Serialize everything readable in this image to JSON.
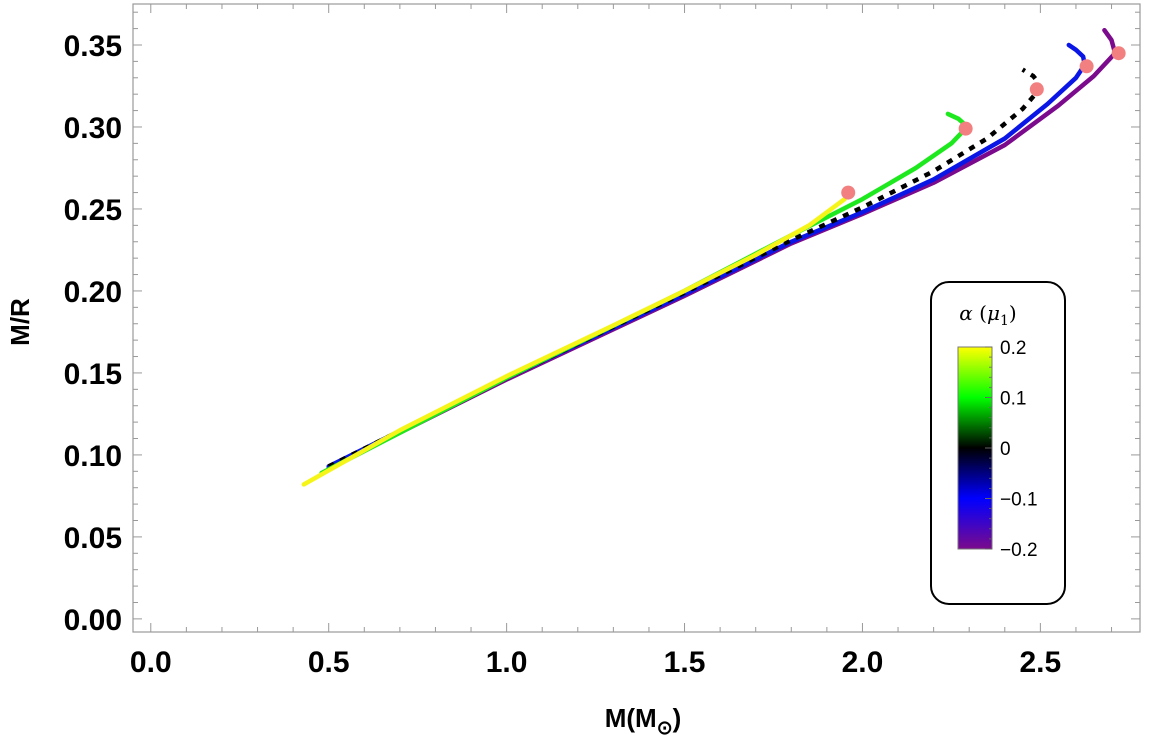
{
  "chart_data": {
    "type": "line",
    "xlabel": "M(M",
    "xlabel_sub": "⊙",
    "xlabel_close": ")",
    "ylabel": "M/R",
    "xlim": [
      -0.05,
      2.78
    ],
    "ylim": [
      -0.008,
      0.375
    ],
    "x_ticks": [
      0.0,
      0.5,
      1.0,
      1.5,
      2.0,
      2.5
    ],
    "x_tick_labels": [
      "0.0",
      "0.5",
      "1.0",
      "1.5",
      "2.0",
      "2.5"
    ],
    "y_ticks": [
      0.0,
      0.05,
      0.1,
      0.15,
      0.2,
      0.25,
      0.3,
      0.35
    ],
    "y_tick_labels": [
      "0.00",
      "0.05",
      "0.10",
      "0.15",
      "0.20",
      "0.25",
      "0.30",
      "0.35"
    ],
    "grid": false,
    "series": [
      {
        "alpha": -0.2,
        "color": "#7b0a8c",
        "dashed": false,
        "points": [
          [
            0.5,
            0.092
          ],
          [
            1.0,
            0.146
          ],
          [
            1.5,
            0.197
          ],
          [
            1.8,
            0.229
          ],
          [
            2.0,
            0.247
          ],
          [
            2.2,
            0.266
          ],
          [
            2.4,
            0.289
          ],
          [
            2.55,
            0.313
          ],
          [
            2.65,
            0.331
          ],
          [
            2.71,
            0.345
          ],
          [
            2.7,
            0.353
          ],
          [
            2.68,
            0.359
          ]
        ],
        "max_point": [
          2.72,
          0.345
        ]
      },
      {
        "alpha": -0.1,
        "color": "#0a16e6",
        "dashed": false,
        "points": [
          [
            0.5,
            0.093
          ],
          [
            1.0,
            0.147
          ],
          [
            1.5,
            0.198
          ],
          [
            1.8,
            0.23
          ],
          [
            2.0,
            0.248
          ],
          [
            2.2,
            0.268
          ],
          [
            2.4,
            0.293
          ],
          [
            2.52,
            0.314
          ],
          [
            2.6,
            0.33
          ],
          [
            2.625,
            0.338
          ],
          [
            2.62,
            0.343
          ],
          [
            2.6,
            0.347
          ],
          [
            2.58,
            0.35
          ]
        ],
        "max_point": [
          2.63,
          0.337
        ]
      },
      {
        "alpha": 0.0,
        "color": "#000000",
        "dashed": true,
        "points": [
          [
            0.5,
            0.093
          ],
          [
            1.0,
            0.147
          ],
          [
            1.5,
            0.199
          ],
          [
            1.8,
            0.231
          ],
          [
            2.0,
            0.251
          ],
          [
            2.2,
            0.273
          ],
          [
            2.35,
            0.293
          ],
          [
            2.45,
            0.311
          ],
          [
            2.49,
            0.321
          ],
          [
            2.495,
            0.327
          ],
          [
            2.48,
            0.331
          ],
          [
            2.45,
            0.335
          ]
        ],
        "max_point": [
          2.49,
          0.323
        ]
      },
      {
        "alpha": 0.1,
        "color": "#1ee81e",
        "dashed": false,
        "points": [
          [
            0.48,
            0.089
          ],
          [
            1.0,
            0.147
          ],
          [
            1.5,
            0.2
          ],
          [
            1.8,
            0.234
          ],
          [
            2.0,
            0.256
          ],
          [
            2.15,
            0.275
          ],
          [
            2.25,
            0.29
          ],
          [
            2.29,
            0.299
          ],
          [
            2.285,
            0.302
          ],
          [
            2.27,
            0.305
          ],
          [
            2.24,
            0.308
          ]
        ],
        "max_point": [
          2.29,
          0.299
        ]
      },
      {
        "alpha": 0.2,
        "color": "#f5f51a",
        "dashed": false,
        "points": [
          [
            0.43,
            0.082
          ],
          [
            0.7,
            0.115
          ],
          [
            1.0,
            0.148
          ],
          [
            1.3,
            0.179
          ],
          [
            1.5,
            0.2
          ],
          [
            1.7,
            0.222
          ],
          [
            1.85,
            0.24
          ],
          [
            1.95,
            0.256
          ]
        ],
        "max_point": [
          1.96,
          0.26
        ]
      }
    ],
    "max_marker_color": "#f28080",
    "colorbar": {
      "title_symbol": "α",
      "title_param": "μ",
      "title_sub": "1",
      "range": [
        -0.2,
        0.2
      ],
      "ticks": [
        0.2,
        0.1,
        0,
        -0.1,
        -0.2
      ],
      "tick_labels": [
        "0.2",
        "0.1",
        "0",
        "−0.1",
        "−0.2"
      ],
      "stops": [
        "#ffff00",
        "#00ff00",
        "#000000",
        "#0000ff",
        "#7b0a8c"
      ],
      "position": "right"
    }
  }
}
